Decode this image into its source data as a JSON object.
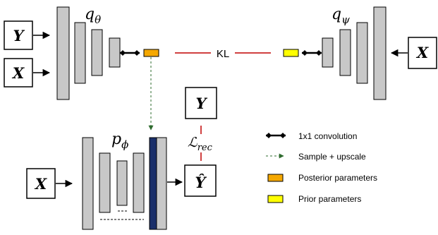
{
  "encoder_posterior": {
    "name_base": "q",
    "name_sub": "θ",
    "inputs": [
      "Y",
      "X"
    ]
  },
  "encoder_prior": {
    "name_base": "q",
    "name_sub": "ψ",
    "input": "X"
  },
  "decoder": {
    "name_base": "p",
    "name_sub": "ϕ",
    "input": "X",
    "output": "Ŷ"
  },
  "target": "Y",
  "kl_label": "KL",
  "loss": {
    "base": "ℒ",
    "sub": "rec"
  },
  "legend": {
    "items": [
      {
        "label": "1x1 convolution"
      },
      {
        "label": "Sample + upscale"
      },
      {
        "label": "Posterior parameters"
      },
      {
        "label": "Prior parameters"
      }
    ]
  },
  "colors": {
    "block_fill": "#c8c8c8",
    "posterior": "#f5a800",
    "prior": "#ffff00",
    "kl_line": "#c00000",
    "sample_arrow": "#2e6b2e",
    "decoder_bar": "#1a2f6a"
  }
}
